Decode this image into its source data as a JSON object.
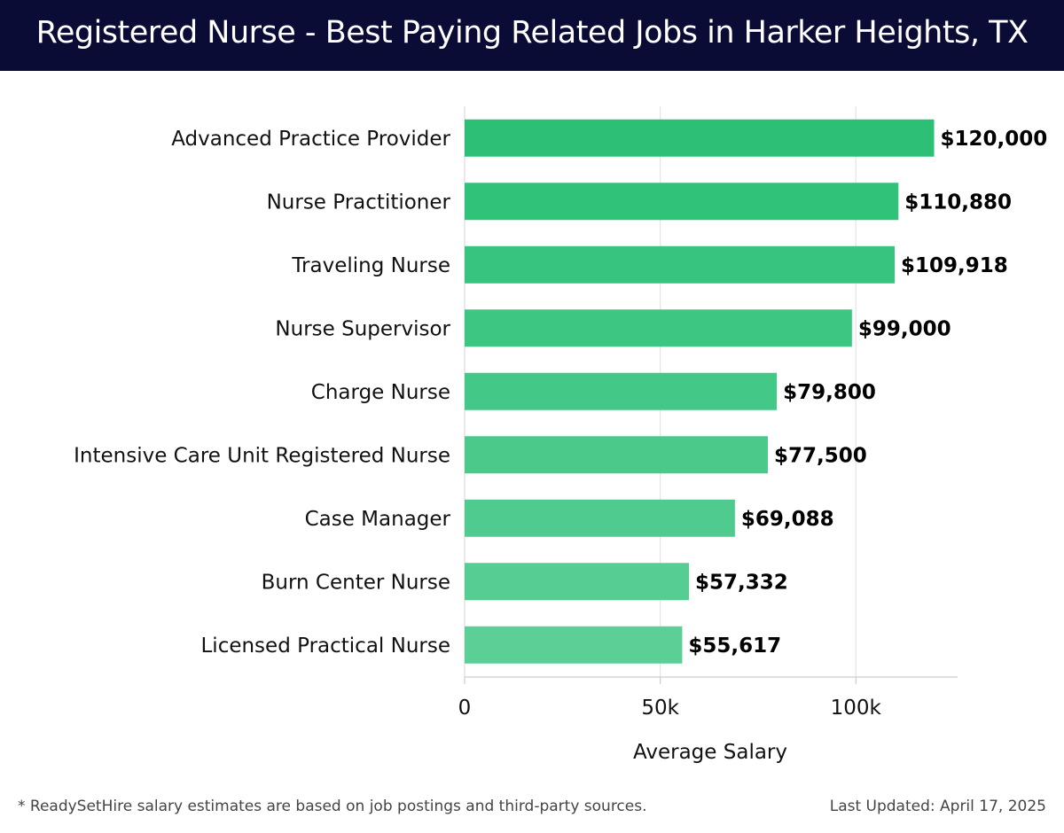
{
  "header": {
    "title": "Registered Nurse - Best Paying Related Jobs in Harker Heights, TX"
  },
  "chart_data": {
    "type": "bar",
    "orientation": "horizontal",
    "categories": [
      "Advanced Practice Provider",
      "Nurse Practitioner",
      "Traveling Nurse",
      "Nurse Supervisor",
      "Charge Nurse",
      "Intensive Care Unit Registered Nurse",
      "Case Manager",
      "Burn Center Nurse",
      "Licensed Practical Nurse"
    ],
    "values": [
      120000,
      110880,
      109918,
      99000,
      79800,
      77500,
      69088,
      57332,
      55617
    ],
    "value_labels": [
      "$120,000",
      "$110,880",
      "$109,918",
      "$99,000",
      "$79,800",
      "$77,500",
      "$69,088",
      "$57,332",
      "$55,617"
    ],
    "xlabel": "Average Salary",
    "ylabel": "",
    "xlim": [
      0,
      126000
    ],
    "xticks": [
      0,
      50000,
      100000
    ],
    "xtick_labels": [
      "0",
      "50k",
      "100k"
    ],
    "grid": "vertical",
    "colors": {
      "bar_high": "#2bc076",
      "bar_low": "#5ccf97"
    }
  },
  "footer": {
    "note": "* ReadySetHire salary estimates are based on job postings and third-party sources.",
    "updated": "Last Updated: April 17, 2025"
  }
}
